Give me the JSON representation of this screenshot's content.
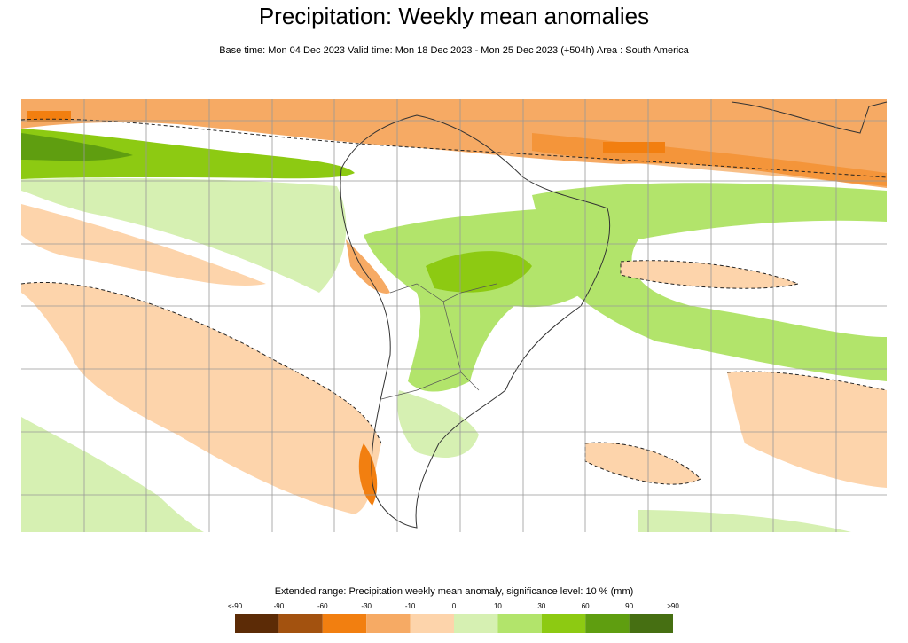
{
  "header": {
    "title": "Precipitation: Weekly mean anomalies",
    "subtitle": "Base time: Mon 04 Dec 2023 Valid time: Mon 18 Dec 2023 - Mon 25 Dec 2023 (+504h) Area : South America"
  },
  "legend": {
    "title": "Extended range: Precipitation weekly mean anomaly, significance level: 10 % (mm)",
    "labels": [
      "<-90",
      "-90",
      "-60",
      "-30",
      "-10",
      "0",
      "10",
      "30",
      "60",
      "90",
      ">90"
    ],
    "colors": [
      "#5c2b06",
      "#a3520f",
      "#f27f10",
      "#f6aa64",
      "#fdd4ab",
      "#d6f0b2",
      "#b2e46b",
      "#8dca12",
      "#5f9e10",
      "#466f12"
    ]
  }
}
